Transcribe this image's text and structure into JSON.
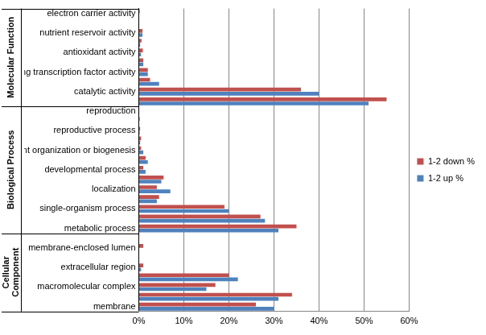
{
  "chart_data": {
    "type": "bar",
    "orientation": "horizontal",
    "grid": true,
    "legend": "right",
    "categories": [
      "electron carrier activity",
      null,
      "nutrient reservoir activity",
      null,
      "antioxidant activity",
      null,
      "nucleic acid binding transcription factor activity",
      null,
      "catalytic activity",
      null,
      "reproduction",
      null,
      "reproductive process",
      null,
      "cellular component organization or biogenesis",
      null,
      "developmental process",
      null,
      "localization",
      null,
      "single-organism process",
      null,
      "metabolic process",
      null,
      "membrane-enclosed lumen",
      null,
      "extracellular region",
      null,
      "macromolecular complex",
      null,
      "membrane"
    ],
    "category_groups": [
      {
        "label": "Molecular Function",
        "size": 10
      },
      {
        "label": "Biological Process",
        "size": 13
      },
      {
        "label": "Cellular Component",
        "size": 8
      }
    ],
    "series": [
      {
        "name": "1-2 down %",
        "color": "#c0504d",
        "values": [
          0.2,
          0.1,
          0.8,
          0.6,
          0.9,
          1,
          2,
          2.5,
          36,
          55,
          0.1,
          0.2,
          0.3,
          0.5,
          0.5,
          1.5,
          1,
          5.5,
          4,
          4.5,
          19,
          27,
          35,
          0,
          1,
          0,
          1,
          20,
          17,
          34,
          26
        ]
      },
      {
        "name": "1-2 up %",
        "color": "#4f81bd",
        "values": [
          0,
          0.1,
          0.8,
          0.3,
          0.5,
          1,
          2,
          4.5,
          40,
          51,
          0.1,
          0.1,
          0.2,
          0.3,
          1,
          2,
          1.5,
          5,
          7,
          4,
          20,
          28,
          31,
          0,
          0,
          0,
          0.5,
          22,
          15,
          31,
          30
        ]
      }
    ],
    "xlim": [
      0,
      60
    ],
    "xticks": [
      {
        "value": 0,
        "label": "0%"
      },
      {
        "value": 10,
        "label": "10%"
      },
      {
        "value": 20,
        "label": "20%"
      },
      {
        "value": 30,
        "label": "30%"
      },
      {
        "value": 40,
        "label": "40%"
      },
      {
        "value": 50,
        "label": "50%"
      },
      {
        "value": 60,
        "label": "60%"
      }
    ]
  }
}
